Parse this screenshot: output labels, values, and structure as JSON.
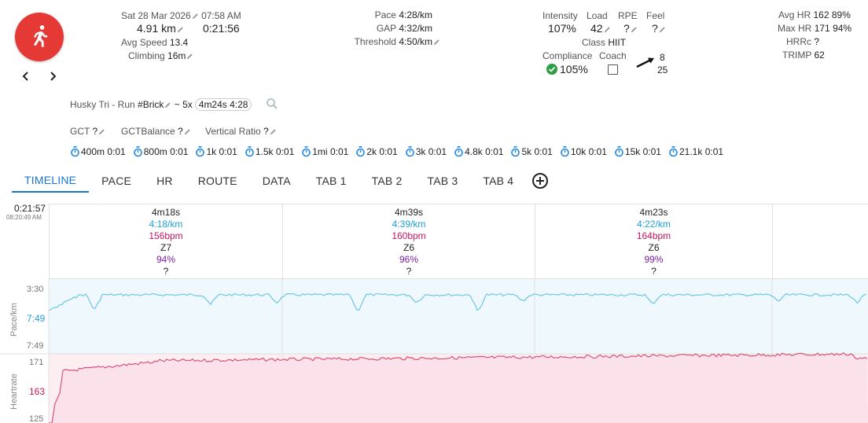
{
  "activity": {
    "date": "Sat 28 Mar 2026",
    "time": "07:58 AM",
    "distance": "4.91 km",
    "duration": "0:21:56",
    "avg_speed_label": "Avg Speed",
    "avg_speed": "13.4",
    "climbing_label": "Climbing",
    "climbing": "16m"
  },
  "pace": {
    "pace_label": "Pace",
    "pace": "4:28/km",
    "gap_label": "GAP",
    "gap": "4:32/km",
    "threshold_label": "Threshold",
    "threshold": "4:50/km"
  },
  "metrics": {
    "intensity_label": "Intensity",
    "intensity": "107%",
    "load_label": "Load",
    "load": "42",
    "rpe_label": "RPE",
    "rpe": "?",
    "feel_label": "Feel",
    "feel": "?",
    "class_label": "Class",
    "class": "HIIT",
    "compliance_label": "Compliance",
    "compliance": "105%",
    "coach_label": "Coach",
    "trend_top": "8",
    "trend_bottom": "25"
  },
  "hr": {
    "avg_label": "Avg HR",
    "avg": "162",
    "avg_pct": "89%",
    "max_label": "Max HR",
    "max": "171",
    "max_pct": "94%",
    "hrrc_label": "HRRc",
    "hrrc": "?",
    "trimp_label": "TRIMP",
    "trimp": "62"
  },
  "title": {
    "prefix": "Husky Tri - Run",
    "hashtag": "#Brick",
    "tilde": "~",
    "reps": "5x",
    "tag": "4m24s 4:28"
  },
  "extra": {
    "gct_label": "GCT",
    "gct": "?",
    "gctb_label": "GCTBalance",
    "gctb": "?",
    "vr_label": "Vertical Ratio",
    "vr": "?"
  },
  "splits": [
    {
      "dist": "400m",
      "time": "0:01"
    },
    {
      "dist": "800m",
      "time": "0:01"
    },
    {
      "dist": "1k",
      "time": "0:01"
    },
    {
      "dist": "1.5k",
      "time": "0:01"
    },
    {
      "dist": "1mi",
      "time": "0:01"
    },
    {
      "dist": "2k",
      "time": "0:01"
    },
    {
      "dist": "3k",
      "time": "0:01"
    },
    {
      "dist": "4.8k",
      "time": "0:01"
    },
    {
      "dist": "5k",
      "time": "0:01"
    },
    {
      "dist": "10k",
      "time": "0:01"
    },
    {
      "dist": "15k",
      "time": "0:01"
    },
    {
      "dist": "21.1k",
      "time": "0:01"
    }
  ],
  "tabs": [
    "TIMELINE",
    "PACE",
    "HR",
    "ROUTE",
    "DATA",
    "TAB 1",
    "TAB 2",
    "TAB 3",
    "TAB 4"
  ],
  "timeline": {
    "elapsed": "0:21:57",
    "clock": "08:20:49 AM",
    "intervals": [
      {
        "dur": "4m18s",
        "pace": "4:18/km",
        "hr": "156bpm",
        "zone": "Z7",
        "pct": "94%",
        "q": "?"
      },
      {
        "dur": "4m39s",
        "pace": "4:39/km",
        "hr": "160bpm",
        "zone": "Z6",
        "pct": "96%",
        "q": "?"
      },
      {
        "dur": "4m23s",
        "pace": "4:22/km",
        "hr": "164bpm",
        "zone": "Z6",
        "pct": "99%",
        "q": "?"
      }
    ]
  },
  "charts": {
    "pace_axis_label": "Pace/km",
    "pace_ticks": [
      "3:30",
      "7:49",
      "7:49"
    ],
    "hr_axis_label": "Heartrate",
    "hr_ticks": [
      "171",
      "163",
      "125"
    ]
  },
  "colors": {
    "accent": "#1976d2",
    "pace_line": "#6ec6e6",
    "pace_fill": "#eef8fd",
    "hr_line": "#d6537e",
    "hr_fill": "#fdeef2",
    "brand": "#e53935"
  }
}
